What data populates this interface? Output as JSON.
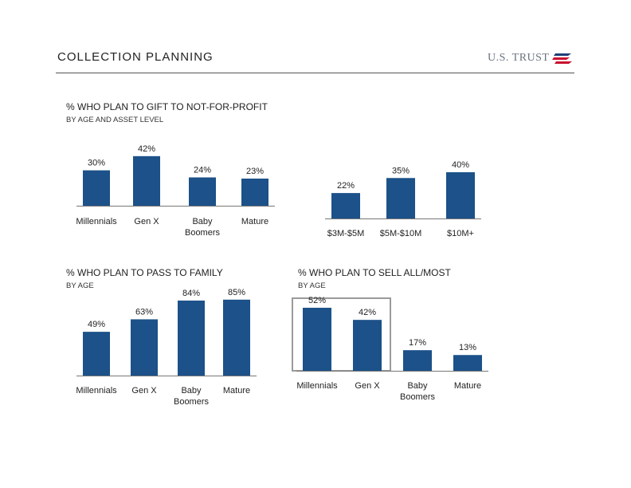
{
  "header": {
    "title": "COLLECTION PLANNING",
    "logo_text": "U.S. TRUST",
    "logo_icon": "flag-icon"
  },
  "sections": {
    "gift": {
      "title": "% WHO PLAN TO GIFT TO NOT-FOR-PROFIT",
      "subtitle": "BY AGE AND ASSET LEVEL"
    },
    "family": {
      "title": "% WHO PLAN TO PASS TO FAMILY",
      "subtitle": "BY AGE"
    },
    "sell": {
      "title": "% WHO PLAN TO SELL ALL/MOST",
      "subtitle": "BY AGE"
    }
  },
  "colors": {
    "bar": "#1c5189",
    "highlight": "#9a9a9a"
  },
  "chart_data": [
    {
      "id": "gift-age",
      "type": "bar",
      "categories": [
        "Millennials",
        "Gen X",
        "Baby Boomers",
        "Mature"
      ],
      "values": [
        30,
        42,
        24,
        23
      ],
      "labels": [
        "30%",
        "42%",
        "24%",
        "23%"
      ]
    },
    {
      "id": "gift-asset",
      "type": "bar",
      "categories": [
        "$3M-$5M",
        "$5M-$10M",
        "$10M+"
      ],
      "values": [
        22,
        35,
        40
      ],
      "labels": [
        "22%",
        "35%",
        "40%"
      ]
    },
    {
      "id": "family-age",
      "type": "bar",
      "categories": [
        "Millennials",
        "Gen X",
        "Baby Boomers",
        "Mature"
      ],
      "values": [
        49,
        63,
        84,
        85
      ],
      "labels": [
        "49%",
        "63%",
        "84%",
        "85%"
      ]
    },
    {
      "id": "sell-age",
      "type": "bar",
      "categories": [
        "Millennials",
        "Gen X",
        "Baby Boomers",
        "Mature"
      ],
      "values": [
        52,
        42,
        17,
        13
      ],
      "labels": [
        "52%",
        "42%",
        "17%",
        "13%"
      ]
    }
  ]
}
